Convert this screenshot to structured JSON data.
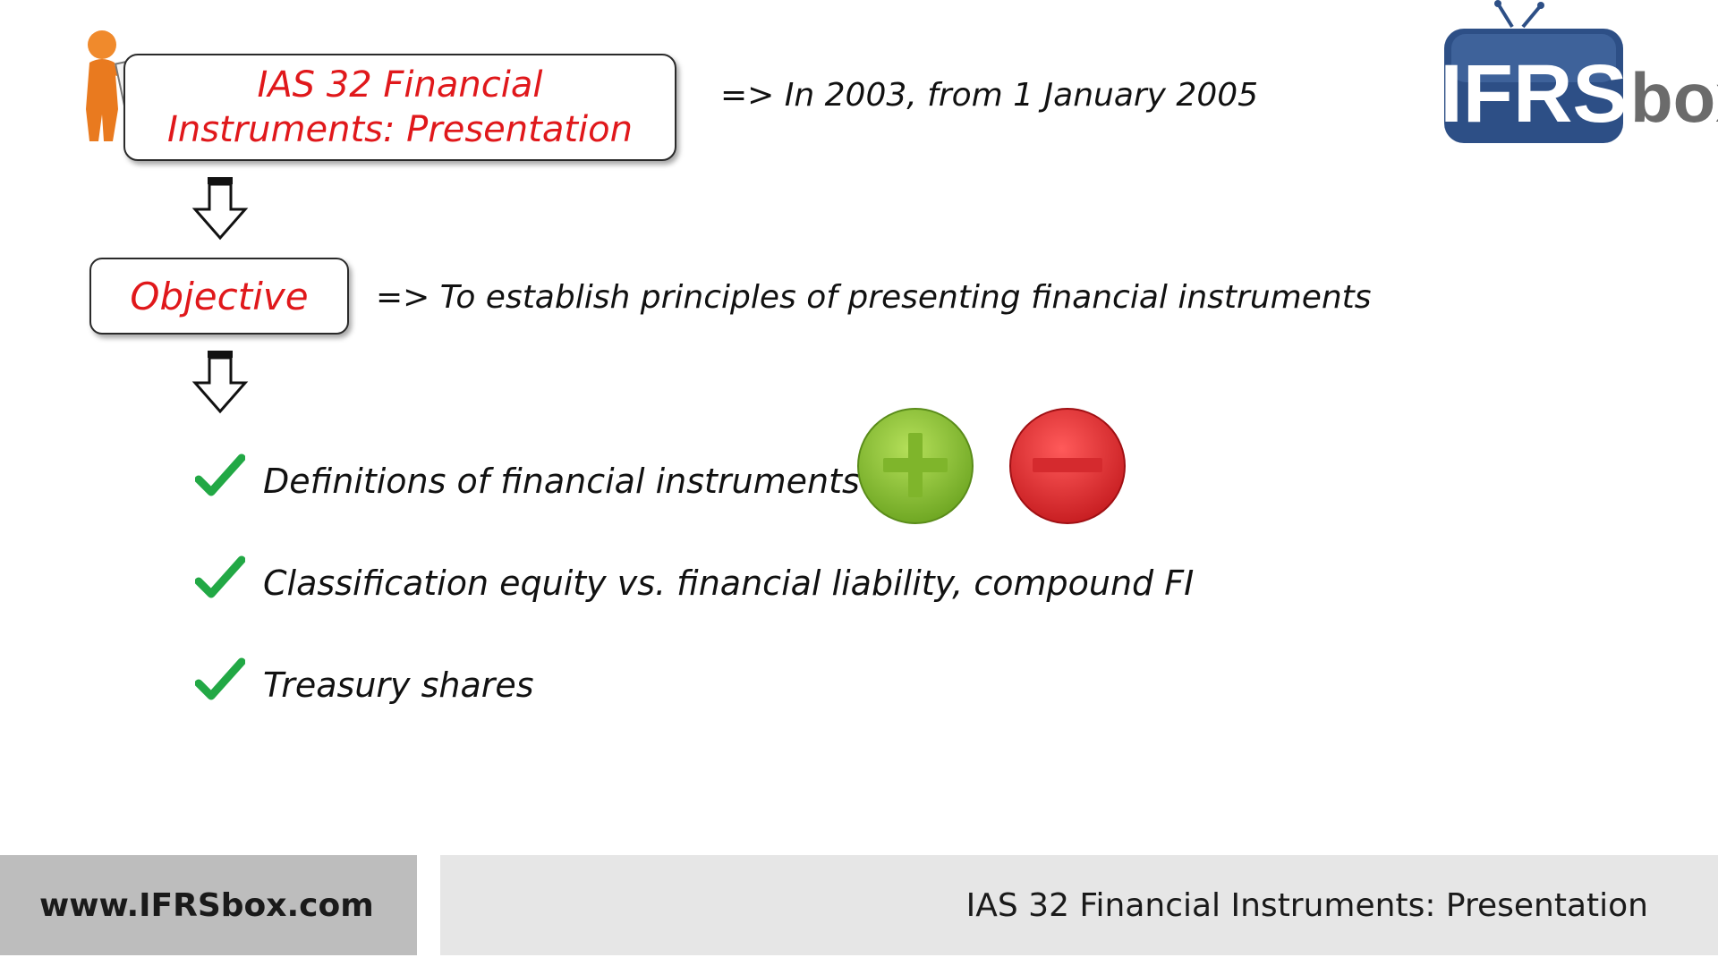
{
  "title": {
    "line1": "IAS 32 Financial",
    "line2": "Instruments: Presentation",
    "note": "=> In 2003, from 1 January 2005"
  },
  "objective": {
    "label": "Objective",
    "note": "=> To establish principles of presenting financial instruments"
  },
  "items": [
    {
      "text": "Definitions of financial instruments"
    },
    {
      "text": "Classification equity vs. financial liability, compound FI"
    },
    {
      "text": "Treasury shares"
    }
  ],
  "icons": {
    "plus": "plus-circle-icon",
    "minus": "minus-circle-icon",
    "check": "check-icon"
  },
  "logo": {
    "part1": "IFRS",
    "part2": "box"
  },
  "footer": {
    "website": "www.IFRSbox.com",
    "topic": "IAS 32 Financial Instruments: Presentation"
  },
  "colors": {
    "accent_red": "#e0181b",
    "check_green": "#22a845",
    "plus_green": "#8cc63f",
    "minus_red": "#e0262b",
    "logo_blue": "#2d4f86",
    "logo_gray": "#6b6b6b"
  }
}
